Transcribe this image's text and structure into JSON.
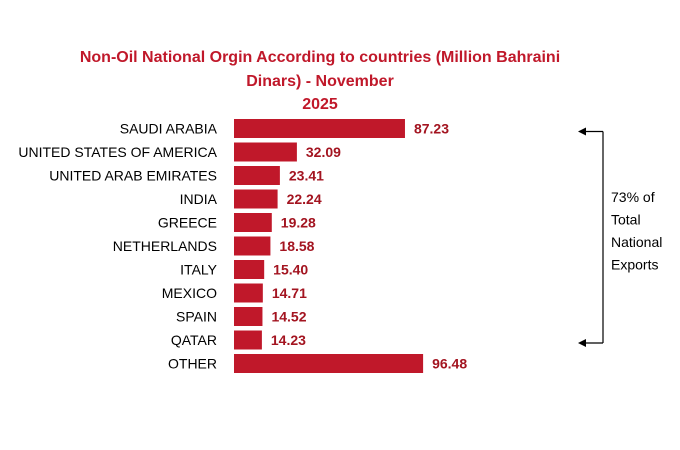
{
  "chart_data": {
    "type": "bar",
    "orientation": "horizontal",
    "title_lines": [
      "Non-Oil National Orgin According to countries (Million Bahraini",
      "Dinars) - November",
      "2025"
    ],
    "categories": [
      "SAUDI ARABIA",
      "UNITED STATES OF AMERICA",
      "UNITED ARAB EMIRATES",
      "INDIA",
      "GREECE",
      "NETHERLANDS",
      "ITALY",
      "MEXICO",
      "SPAIN",
      "QATAR",
      "OTHER"
    ],
    "values": [
      87.23,
      32.09,
      23.41,
      22.24,
      19.28,
      18.58,
      15.4,
      14.71,
      14.52,
      14.23,
      96.48
    ],
    "value_labels": [
      "87.23",
      "32.09",
      "23.41",
      "22.24",
      "19.28",
      "18.58",
      "15.40",
      "14.71",
      "14.52",
      "14.23",
      "96.48"
    ],
    "xlim": [
      0,
      100
    ],
    "grid": false,
    "legend": "none",
    "bar_color": "#c0182a",
    "label_color": "#a31420",
    "annotation": {
      "lines": [
        "73%  of",
        "Total",
        "National",
        "Exports"
      ],
      "span_from": "SAUDI ARABIA",
      "span_to": "QATAR"
    }
  }
}
